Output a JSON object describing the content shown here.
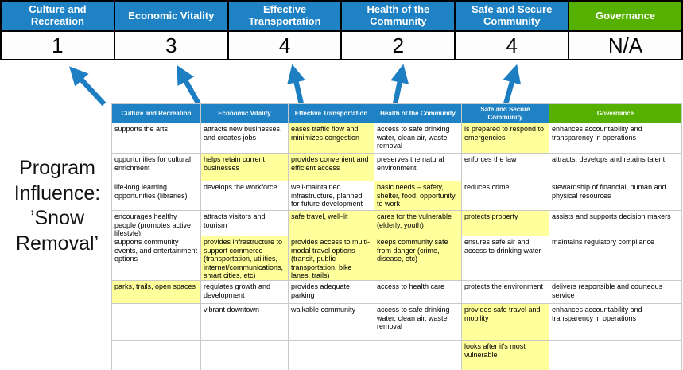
{
  "colors": {
    "blue": "#1e82c4",
    "green": "#55b000",
    "yellow": "#ffff9c",
    "score_bg": "#fdfdfd",
    "band_bg": "#000000",
    "arrow": "#1e7ec2",
    "grid_line": "#c9c9c9"
  },
  "program_title": "Program Influence: ’Snow Removal’",
  "score_band": {
    "columns": [
      {
        "label": "Culture and Recreation",
        "score": "1",
        "type": "blue"
      },
      {
        "label": "Economic Vitality",
        "score": "3",
        "type": "blue"
      },
      {
        "label": "Effective Transportation",
        "score": "4",
        "type": "blue"
      },
      {
        "label": "Health of the Community",
        "score": "2",
        "type": "blue"
      },
      {
        "label": "Safe and Secure Community",
        "score": "4",
        "type": "blue"
      },
      {
        "label": "Governance",
        "score": "N/A",
        "type": "green"
      }
    ]
  },
  "matrix": {
    "headers": [
      {
        "label": "Culture and Recreation",
        "type": "blue"
      },
      {
        "label": "Economic Vitality",
        "type": "blue"
      },
      {
        "label": "Effective Transportation",
        "type": "blue"
      },
      {
        "label": "Health of the Community",
        "type": "blue"
      },
      {
        "label": "Safe and Secure Community",
        "type": "blue"
      },
      {
        "label": "Governance",
        "type": "green"
      }
    ],
    "rows": [
      {
        "cells": [
          {
            "text": "supports the arts",
            "highlight": false
          },
          {
            "text": "attracts new businesses, and creates jobs",
            "highlight": false
          },
          {
            "text": "eases traffic flow and minimizes congestion",
            "highlight": true
          },
          {
            "text": "access to safe drinking water, clean air, waste removal",
            "highlight": false
          },
          {
            "text": "is prepared to respond to emergencies",
            "highlight": true
          },
          {
            "text": "enhances accountability and transparency in operations",
            "highlight": false
          }
        ]
      },
      {
        "cells": [
          {
            "text": "opportunities for cultural enrichment",
            "highlight": false
          },
          {
            "text": "helps retain current businesses",
            "highlight": true
          },
          {
            "text": "provides convenient and efficient access",
            "highlight": true
          },
          {
            "text": "preserves the natural environment",
            "highlight": false
          },
          {
            "text": "enforces the law",
            "highlight": false
          },
          {
            "text": "attracts, develops and retains talent",
            "highlight": false
          }
        ]
      },
      {
        "cells": [
          {
            "text": "life-long learning opportunities (libraries)",
            "highlight": false
          },
          {
            "text": "develops the workforce",
            "highlight": false
          },
          {
            "text": "well-maintained infrastructure, planned for future development",
            "highlight": false
          },
          {
            "text": "basic needs – safety, shelter, food, opportunity to work",
            "highlight": true
          },
          {
            "text": "reduces crime",
            "highlight": false
          },
          {
            "text": "stewardship of financial, human and physical resources",
            "highlight": false
          }
        ]
      },
      {
        "cells": [
          {
            "text": "encourages healthy people (promotes active lifestyle)",
            "highlight": false
          },
          {
            "text": "attracts visitors and tourism",
            "highlight": false
          },
          {
            "text": "safe travel, well-lit",
            "highlight": true
          },
          {
            "text": "cares for the vulnerable (elderly, youth)",
            "highlight": true
          },
          {
            "text": "protects property",
            "highlight": true
          },
          {
            "text": "assists and supports decision makers",
            "highlight": false
          }
        ]
      },
      {
        "cells": [
          {
            "text": "supports community events, and entertainment options",
            "highlight": false
          },
          {
            "text": "provides infrastructure to support commerce (transportation, utilities, internet/communications, smart cities, etc)",
            "highlight": true
          },
          {
            "text": "provides access to multi-modal travel options (transit, public transportation, bike lanes, trails)",
            "highlight": true
          },
          {
            "text": "keeps community safe from danger (crime, disease, etc)",
            "highlight": true
          },
          {
            "text": "ensures safe air and access to drinking water",
            "highlight": false
          },
          {
            "text": "maintains regulatory compliance",
            "highlight": false
          }
        ]
      },
      {
        "cells": [
          {
            "text": "parks, trails, open spaces",
            "highlight": true
          },
          {
            "text": "regulates growth and development",
            "highlight": false
          },
          {
            "text": "provides adequate parking",
            "highlight": false
          },
          {
            "text": "access to health care",
            "highlight": false
          },
          {
            "text": "protects the environment",
            "highlight": false
          },
          {
            "text": "delivers responsible and courteous service",
            "highlight": false
          }
        ]
      },
      {
        "cells": [
          {
            "text": "",
            "highlight": false
          },
          {
            "text": "vibrant downtown",
            "highlight": false
          },
          {
            "text": "walkable community",
            "highlight": false
          },
          {
            "text": "access to safe drinking water, clean air, waste removal",
            "highlight": false
          },
          {
            "text": "provides safe travel and mobility",
            "highlight": true
          },
          {
            "text": "enhances accountability and transparency in operations",
            "highlight": false
          }
        ]
      },
      {
        "cells": [
          {
            "text": "",
            "highlight": false
          },
          {
            "text": "",
            "highlight": false
          },
          {
            "text": "",
            "highlight": false
          },
          {
            "text": "",
            "highlight": false
          },
          {
            "text": "looks after it's most vulnerable",
            "highlight": true
          },
          {
            "text": "",
            "highlight": false
          }
        ]
      }
    ]
  }
}
